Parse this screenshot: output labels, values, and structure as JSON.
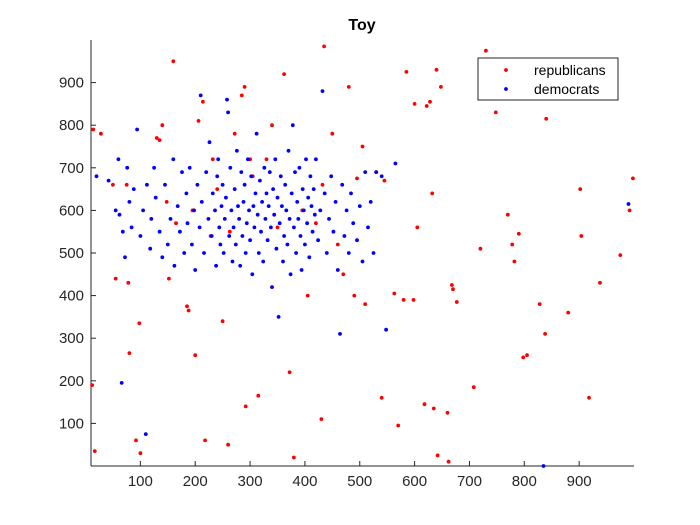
{
  "chart_data": {
    "type": "scatter",
    "title": "Toy",
    "xlabel": "",
    "ylabel": "",
    "xlim": [
      10,
      1000
    ],
    "ylim": [
      0,
      1000
    ],
    "xticks": [
      "100",
      "200",
      "300",
      "400",
      "500",
      "600",
      "700",
      "800",
      "900"
    ],
    "yticks": [
      "100",
      "200",
      "300",
      "400",
      "500",
      "600",
      "700",
      "800",
      "900"
    ],
    "grid": false,
    "legend_position": "top-right",
    "series": [
      {
        "name": "republicans",
        "color": "#ff0000",
        "points": [
          [
            12,
            190
          ],
          [
            14,
            790
          ],
          [
            17,
            35
          ],
          [
            28,
            780
          ],
          [
            50,
            660
          ],
          [
            55,
            440
          ],
          [
            78,
            430
          ],
          [
            80,
            265
          ],
          [
            75,
            660
          ],
          [
            92,
            60
          ],
          [
            98,
            335
          ],
          [
            100,
            30
          ],
          [
            130,
            770
          ],
          [
            135,
            765
          ],
          [
            140,
            800
          ],
          [
            148,
            620
          ],
          [
            152,
            440
          ],
          [
            160,
            950
          ],
          [
            165,
            570
          ],
          [
            185,
            375
          ],
          [
            188,
            365
          ],
          [
            195,
            600
          ],
          [
            200,
            260
          ],
          [
            206,
            810
          ],
          [
            214,
            855
          ],
          [
            218,
            60
          ],
          [
            228,
            540
          ],
          [
            232,
            720
          ],
          [
            240,
            650
          ],
          [
            250,
            340
          ],
          [
            260,
            50
          ],
          [
            263,
            550
          ],
          [
            272,
            780
          ],
          [
            285,
            870
          ],
          [
            290,
            890
          ],
          [
            292,
            140
          ],
          [
            300,
            720
          ],
          [
            305,
            680
          ],
          [
            315,
            165
          ],
          [
            330,
            720
          ],
          [
            340,
            800
          ],
          [
            350,
            560
          ],
          [
            362,
            920
          ],
          [
            372,
            220
          ],
          [
            380,
            20
          ],
          [
            395,
            600
          ],
          [
            405,
            400
          ],
          [
            420,
            570
          ],
          [
            430,
            110
          ],
          [
            432,
            660
          ],
          [
            435,
            985
          ],
          [
            450,
            780
          ],
          [
            460,
            520
          ],
          [
            470,
            450
          ],
          [
            480,
            890
          ],
          [
            490,
            400
          ],
          [
            495,
            675
          ],
          [
            505,
            750
          ],
          [
            510,
            380
          ],
          [
            530,
            690
          ],
          [
            540,
            160
          ],
          [
            545,
            670
          ],
          [
            563,
            405
          ],
          [
            570,
            95
          ],
          [
            580,
            390
          ],
          [
            585,
            925
          ],
          [
            598,
            390
          ],
          [
            600,
            850
          ],
          [
            605,
            560
          ],
          [
            618,
            145
          ],
          [
            622,
            845
          ],
          [
            628,
            855
          ],
          [
            632,
            640
          ],
          [
            635,
            135
          ],
          [
            640,
            930
          ],
          [
            642,
            25
          ],
          [
            648,
            890
          ],
          [
            660,
            125
          ],
          [
            662,
            10
          ],
          [
            668,
            425
          ],
          [
            670,
            415
          ],
          [
            677,
            385
          ],
          [
            708,
            185
          ],
          [
            720,
            510
          ],
          [
            730,
            975
          ],
          [
            748,
            830
          ],
          [
            770,
            590
          ],
          [
            778,
            520
          ],
          [
            782,
            480
          ],
          [
            790,
            545
          ],
          [
            798,
            255
          ],
          [
            805,
            260
          ],
          [
            828,
            380
          ],
          [
            838,
            310
          ],
          [
            840,
            815
          ],
          [
            880,
            360
          ],
          [
            902,
            650
          ],
          [
            904,
            540
          ],
          [
            918,
            160
          ],
          [
            938,
            430
          ],
          [
            975,
            495
          ],
          [
            992,
            600
          ],
          [
            998,
            675
          ]
        ]
      },
      {
        "name": "democrats",
        "color": "#0000ff",
        "points": [
          [
            20,
            680
          ],
          [
            42,
            670
          ],
          [
            55,
            600
          ],
          [
            60,
            720
          ],
          [
            62,
            590
          ],
          [
            66,
            195
          ],
          [
            68,
            550
          ],
          [
            72,
            490
          ],
          [
            76,
            700
          ],
          [
            80,
            620
          ],
          [
            84,
            560
          ],
          [
            88,
            650
          ],
          [
            94,
            790
          ],
          [
            100,
            540
          ],
          [
            105,
            600
          ],
          [
            110,
            75
          ],
          [
            112,
            660
          ],
          [
            118,
            510
          ],
          [
            120,
            580
          ],
          [
            125,
            700
          ],
          [
            128,
            630
          ],
          [
            135,
            550
          ],
          [
            140,
            490
          ],
          [
            145,
            660
          ],
          [
            150,
            520
          ],
          [
            155,
            580
          ],
          [
            160,
            720
          ],
          [
            162,
            470
          ],
          [
            168,
            610
          ],
          [
            172,
            550
          ],
          [
            176,
            690
          ],
          [
            180,
            500
          ],
          [
            184,
            640
          ],
          [
            186,
            570
          ],
          [
            190,
            700
          ],
          [
            194,
            520
          ],
          [
            198,
            600
          ],
          [
            200,
            460
          ],
          [
            204,
            660
          ],
          [
            208,
            560
          ],
          [
            210,
            870
          ],
          [
            212,
            620
          ],
          [
            216,
            500
          ],
          [
            220,
            690
          ],
          [
            224,
            580
          ],
          [
            226,
            760
          ],
          [
            230,
            540
          ],
          [
            232,
            640
          ],
          [
            236,
            600
          ],
          [
            238,
            470
          ],
          [
            240,
            680
          ],
          [
            242,
            720
          ],
          [
            244,
            560
          ],
          [
            246,
            520
          ],
          [
            248,
            610
          ],
          [
            250,
            660
          ],
          [
            252,
            500
          ],
          [
            254,
            580
          ],
          [
            256,
            630
          ],
          [
            258,
            860
          ],
          [
            260,
            830
          ],
          [
            262,
            540
          ],
          [
            264,
            700
          ],
          [
            266,
            600
          ],
          [
            268,
            480
          ],
          [
            270,
            560
          ],
          [
            272,
            650
          ],
          [
            274,
            520
          ],
          [
            276,
            740
          ],
          [
            278,
            610
          ],
          [
            280,
            580
          ],
          [
            282,
            470
          ],
          [
            284,
            690
          ],
          [
            286,
            540
          ],
          [
            288,
            620
          ],
          [
            290,
            660
          ],
          [
            292,
            500
          ],
          [
            294,
            570
          ],
          [
            296,
            720
          ],
          [
            298,
            600
          ],
          [
            300,
            530
          ],
          [
            302,
            680
          ],
          [
            304,
            450
          ],
          [
            306,
            610
          ],
          [
            308,
            560
          ],
          [
            310,
            640
          ],
          [
            312,
            780
          ],
          [
            314,
            590
          ],
          [
            316,
            500
          ],
          [
            318,
            670
          ],
          [
            320,
            550
          ],
          [
            322,
            620
          ],
          [
            324,
            480
          ],
          [
            326,
            700
          ],
          [
            328,
            580
          ],
          [
            330,
            640
          ],
          [
            332,
            530
          ],
          [
            334,
            610
          ],
          [
            336,
            690
          ],
          [
            338,
            560
          ],
          [
            340,
            420
          ],
          [
            342,
            650
          ],
          [
            344,
            590
          ],
          [
            346,
            720
          ],
          [
            348,
            510
          ],
          [
            350,
            630
          ],
          [
            352,
            350
          ],
          [
            354,
            570
          ],
          [
            356,
            680
          ],
          [
            358,
            610
          ],
          [
            360,
            480
          ],
          [
            362,
            540
          ],
          [
            364,
            660
          ],
          [
            366,
            600
          ],
          [
            368,
            520
          ],
          [
            370,
            740
          ],
          [
            372,
            580
          ],
          [
            374,
            450
          ],
          [
            376,
            640
          ],
          [
            378,
            800
          ],
          [
            380,
            560
          ],
          [
            382,
            690
          ],
          [
            384,
            500
          ],
          [
            386,
            620
          ],
          [
            388,
            580
          ],
          [
            390,
            700
          ],
          [
            392,
            540
          ],
          [
            394,
            460
          ],
          [
            396,
            650
          ],
          [
            398,
            600
          ],
          [
            400,
            520
          ],
          [
            402,
            720
          ],
          [
            404,
            570
          ],
          [
            406,
            630
          ],
          [
            408,
            490
          ],
          [
            410,
            680
          ],
          [
            412,
            610
          ],
          [
            414,
            550
          ],
          [
            416,
            650
          ],
          [
            418,
            590
          ],
          [
            420,
            720
          ],
          [
            424,
            530
          ],
          [
            428,
            600
          ],
          [
            432,
            880
          ],
          [
            436,
            640
          ],
          [
            440,
            500
          ],
          [
            444,
            580
          ],
          [
            448,
            680
          ],
          [
            452,
            550
          ],
          [
            456,
            620
          ],
          [
            460,
            460
          ],
          [
            464,
            310
          ],
          [
            468,
            660
          ],
          [
            472,
            540
          ],
          [
            476,
            600
          ],
          [
            480,
            500
          ],
          [
            484,
            640
          ],
          [
            488,
            570
          ],
          [
            495,
            530
          ],
          [
            500,
            610
          ],
          [
            505,
            480
          ],
          [
            510,
            690
          ],
          [
            515,
            560
          ],
          [
            520,
            620
          ],
          [
            525,
            500
          ],
          [
            530,
            690
          ],
          [
            540,
            680
          ],
          [
            548,
            320
          ],
          [
            565,
            710
          ],
          [
            835,
            0
          ],
          [
            990,
            615
          ]
        ]
      }
    ]
  }
}
